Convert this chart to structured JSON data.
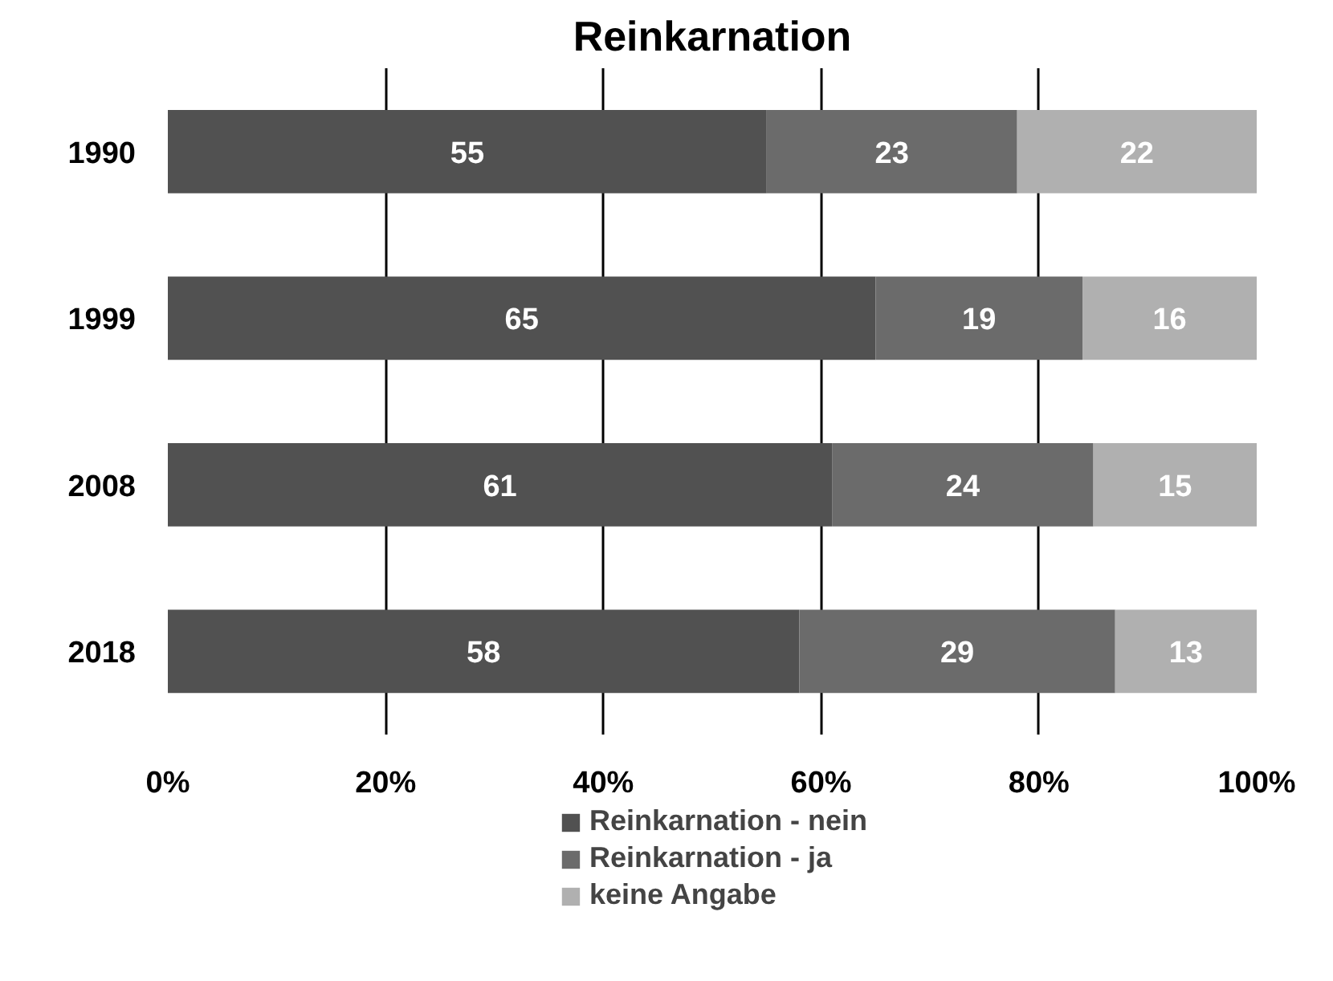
{
  "chart_data": {
    "type": "bar",
    "title": "Reinkarnation",
    "orientation": "horizontal",
    "stacked": true,
    "categories": [
      "1990",
      "1999",
      "2008",
      "2018"
    ],
    "series": [
      {
        "name": "Reinkarnation - nein",
        "color": "#515151",
        "values": [
          55,
          65,
          61,
          58
        ]
      },
      {
        "name": "Reinkarnation - ja",
        "color": "#6b6b6b",
        "values": [
          23,
          19,
          24,
          29
        ]
      },
      {
        "name": "keine Angabe",
        "color": "#b0b0b0",
        "values": [
          22,
          16,
          15,
          13
        ]
      }
    ],
    "xlim": [
      0,
      100
    ],
    "xticks": [
      {
        "value": 0,
        "label": "0%"
      },
      {
        "value": 20,
        "label": "20%"
      },
      {
        "value": 40,
        "label": "40%"
      },
      {
        "value": 60,
        "label": "60%"
      },
      {
        "value": 80,
        "label": "80%"
      },
      {
        "value": 100,
        "label": "100%"
      }
    ],
    "grid": "x",
    "legend": "bottom",
    "data_labels": true
  }
}
